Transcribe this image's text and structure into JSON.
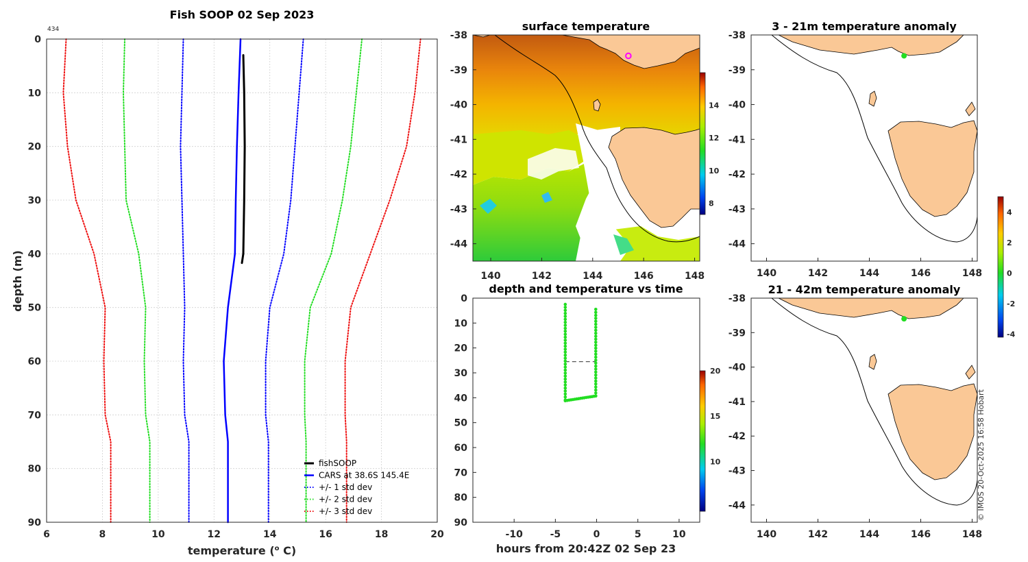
{
  "colors": {
    "profile": "#000000",
    "cars": "#0000ff",
    "std1": "#0000ff",
    "std2": "#22dd22",
    "std3": "#ee1111",
    "land": "#fac896",
    "trace": "#22dd22",
    "marker": "#ff00ff"
  },
  "chart_data": [
    {
      "id": "profile",
      "type": "line",
      "title": "Fish SOOP 02 Sep 2023",
      "corner_label": "434",
      "xlabel": "temperature (",
      "xlabel_sup": "o",
      "xlabel_end": " C)",
      "ylabel": "depth (m)",
      "xlim": [
        6,
        20
      ],
      "ylim": [
        0,
        90
      ],
      "xticks": [
        6,
        8,
        10,
        12,
        14,
        16,
        18,
        20
      ],
      "yticks": [
        0,
        10,
        20,
        30,
        40,
        50,
        60,
        70,
        80,
        90
      ],
      "series": [
        {
          "name": "fishSOOP",
          "key": "profile",
          "dash": "solid",
          "width": 3,
          "points": [
            [
              13.05,
              3
            ],
            [
              13.08,
              10
            ],
            [
              13.1,
              20
            ],
            [
              13.08,
              30
            ],
            [
              13.05,
              40
            ],
            [
              13.0,
              41.7
            ]
          ]
        },
        {
          "name": "CARS at 38.6S 145.4E",
          "key": "cars",
          "dash": "solid",
          "width": 2.5,
          "points": [
            [
              12.95,
              0
            ],
            [
              12.88,
              10
            ],
            [
              12.82,
              20
            ],
            [
              12.78,
              30
            ],
            [
              12.75,
              40
            ],
            [
              12.5,
              50
            ],
            [
              12.35,
              60
            ],
            [
              12.4,
              70
            ],
            [
              12.5,
              75
            ],
            [
              12.5,
              90
            ]
          ]
        },
        {
          "name": "+/- 1 std dev",
          "key": "std1",
          "dash": "dotted",
          "width": 2,
          "points": [
            [
              10.9,
              0
            ],
            [
              10.85,
              10
            ],
            [
              10.8,
              20
            ],
            [
              10.85,
              30
            ],
            [
              10.9,
              40
            ],
            [
              10.95,
              50
            ],
            [
              10.9,
              60
            ],
            [
              10.95,
              70
            ],
            [
              11.1,
              75
            ],
            [
              11.1,
              90
            ]
          ]
        },
        {
          "name": "",
          "key": "std1",
          "dash": "dotted",
          "width": 2,
          "points": [
            [
              15.2,
              0
            ],
            [
              15.05,
              10
            ],
            [
              14.9,
              20
            ],
            [
              14.75,
              30
            ],
            [
              14.5,
              40
            ],
            [
              14.0,
              50
            ],
            [
              13.85,
              60
            ],
            [
              13.85,
              70
            ],
            [
              13.95,
              75
            ],
            [
              13.95,
              90
            ]
          ]
        },
        {
          "name": "+/- 2 std dev",
          "key": "std2",
          "dash": "dotted",
          "width": 2,
          "points": [
            [
              8.8,
              0
            ],
            [
              8.75,
              10
            ],
            [
              8.8,
              20
            ],
            [
              8.85,
              30
            ],
            [
              9.3,
              40
            ],
            [
              9.55,
              50
            ],
            [
              9.5,
              60
            ],
            [
              9.55,
              70
            ],
            [
              9.7,
              75
            ],
            [
              9.7,
              90
            ]
          ]
        },
        {
          "name": "",
          "key": "std2",
          "dash": "dotted",
          "width": 2,
          "points": [
            [
              17.3,
              0
            ],
            [
              17.1,
              10
            ],
            [
              16.9,
              20
            ],
            [
              16.6,
              30
            ],
            [
              16.2,
              40
            ],
            [
              15.45,
              50
            ],
            [
              15.25,
              60
            ],
            [
              15.25,
              70
            ],
            [
              15.3,
              75
            ],
            [
              15.3,
              90
            ]
          ]
        },
        {
          "name": "+/- 3 std dev",
          "key": "std3",
          "dash": "dotted",
          "width": 2,
          "points": [
            [
              6.7,
              0
            ],
            [
              6.6,
              10
            ],
            [
              6.75,
              20
            ],
            [
              7.05,
              30
            ],
            [
              7.7,
              40
            ],
            [
              8.1,
              50
            ],
            [
              8.05,
              60
            ],
            [
              8.1,
              70
            ],
            [
              8.3,
              75
            ],
            [
              8.3,
              90
            ]
          ]
        },
        {
          "name": "",
          "key": "std3",
          "dash": "dotted",
          "width": 2,
          "points": [
            [
              19.4,
              0
            ],
            [
              19.2,
              10
            ],
            [
              18.9,
              20
            ],
            [
              18.3,
              30
            ],
            [
              17.6,
              40
            ],
            [
              16.9,
              50
            ],
            [
              16.7,
              60
            ],
            [
              16.7,
              70
            ],
            [
              16.75,
              75
            ],
            [
              16.75,
              90
            ]
          ]
        }
      ]
    },
    {
      "id": "sst",
      "type": "heatmap",
      "title": "surface temperature",
      "xlim": [
        139.3,
        148.2
      ],
      "ylim": [
        -44.5,
        -38
      ],
      "xticks": [
        140,
        142,
        144,
        146,
        148
      ],
      "yticks": [
        -38,
        -39,
        -40,
        -41,
        -42,
        -43,
        -44
      ],
      "clim": [
        7.3,
        16
      ],
      "cticks": [
        8,
        10,
        12,
        14
      ],
      "vessel": [
        145.4,
        -38.6
      ]
    },
    {
      "id": "depthtime",
      "type": "scatter",
      "title": "depth and temperature vs time",
      "xlabel": "hours from 20:42Z 02 Sep 23",
      "xlim": [
        -15,
        12.5
      ],
      "ylim": [
        0,
        90
      ],
      "xticks": [
        -10,
        -5,
        0,
        5,
        10
      ],
      "yticks": [
        0,
        10,
        20,
        30,
        40,
        50,
        60,
        70,
        80,
        90
      ],
      "clim": [
        4.5,
        20
      ],
      "cticks": [
        10,
        15,
        20
      ],
      "descent": {
        "t": -3.8,
        "from": 2.5,
        "to": 41
      },
      "bottom": {
        "from": -3.8,
        "to": -0.1,
        "d0": 41.2,
        "d1": 39.3
      },
      "ascent": {
        "t": -0.1,
        "from": 39.3,
        "to": 3.5
      },
      "gap": {
        "from": -3.8,
        "to": -0.1,
        "depth": 25.5
      }
    },
    {
      "id": "anom1",
      "type": "heatmap",
      "title": "3 - 21m temperature anomaly",
      "xlim": [
        139.4,
        148.2
      ],
      "ylim": [
        -44.5,
        -38
      ],
      "xticks": [
        140,
        142,
        144,
        146,
        148
      ],
      "yticks": [
        -38,
        -39,
        -40,
        -41,
        -42,
        -43,
        -44
      ],
      "point": [
        145.35,
        -38.6
      ]
    },
    {
      "id": "anom2",
      "type": "heatmap",
      "title": "21 - 42m temperature anomaly",
      "xlim": [
        139.4,
        148.2
      ],
      "ylim": [
        -44.5,
        -38
      ],
      "xticks": [
        140,
        142,
        144,
        146,
        148
      ],
      "yticks": [
        -38,
        -39,
        -40,
        -41,
        -42,
        -43,
        -44
      ],
      "point": [
        145.35,
        -38.6
      ]
    },
    {
      "id": "anom-colorbar",
      "type": "heatmap",
      "clim": [
        -4.2,
        5
      ],
      "cticks": [
        -4,
        -2,
        0,
        2,
        4
      ]
    }
  ],
  "copyright": "© IMOS 20-Oct-2025 16:58 Hobart"
}
